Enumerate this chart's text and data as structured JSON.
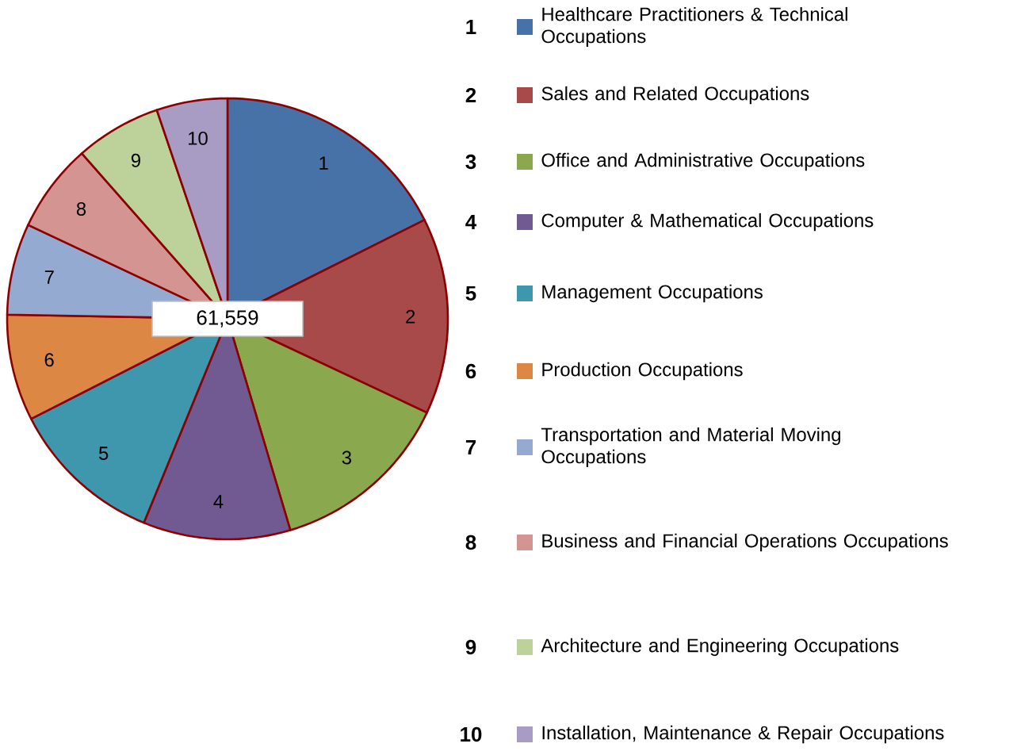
{
  "chart_data": {
    "type": "pie",
    "categories": [
      "Healthcare Practitioners & Technical Occupations",
      "Sales and Related Occupations",
      "Office and Administrative Occupations",
      "Computer & Mathematical Occupations",
      "Management Occupations",
      "Production Occupations",
      "Transportation and Material Moving Occupations",
      "Business and Financial Operations Occupations",
      "Architecture and Engineering Occupations",
      "Installation, Maintenance & Repair Occupations"
    ],
    "values": [
      17.6,
      14.4,
      13.4,
      10.8,
      11.3,
      7.8,
      6.7,
      6.5,
      6.3,
      5.2
    ],
    "colors": [
      "#4672a8",
      "#a84a4a",
      "#8aa84e",
      "#715a92",
      "#3f97ae",
      "#dc8844",
      "#94aad0",
      "#d49592",
      "#bcd29a",
      "#a89cc4"
    ],
    "annotations": [
      "1",
      "2",
      "3",
      "4",
      "5",
      "6",
      "7",
      "8",
      "9",
      "10",
      "61,559"
    ],
    "legend": "right"
  }
}
